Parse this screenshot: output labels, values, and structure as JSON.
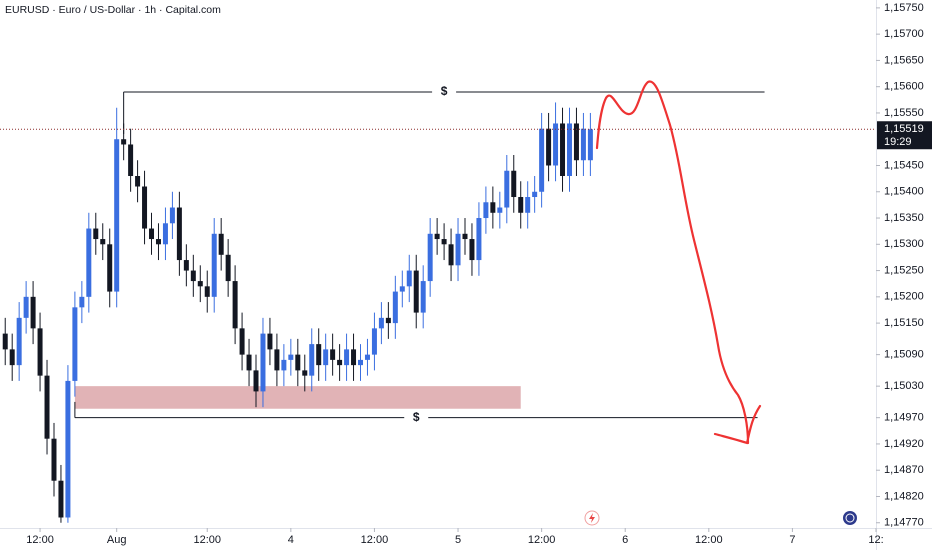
{
  "chart_data": {
    "type": "candlestick",
    "title": "EURUSD · Euro / US-Dollar · 1h · Capital.com",
    "up_color": "#3a6ee0",
    "down_color": "#131722",
    "x": [
      0,
      1,
      2,
      3,
      4,
      5,
      6,
      7,
      8,
      9,
      10,
      11,
      12,
      13,
      14,
      15,
      16,
      17,
      18,
      19,
      20,
      21,
      22,
      23,
      24,
      25,
      26,
      27,
      28,
      29,
      30,
      31,
      32,
      33,
      34,
      35,
      36,
      37,
      38,
      39,
      40,
      41,
      42,
      43,
      44,
      45,
      46,
      47,
      48,
      49,
      50,
      51,
      52,
      53,
      54,
      55,
      56,
      57,
      58,
      59,
      60,
      61,
      62,
      63,
      64,
      65,
      66,
      67,
      68,
      69,
      70,
      71,
      72,
      73,
      74,
      75,
      76,
      77,
      78,
      79,
      80,
      81,
      82,
      83,
      84
    ],
    "open": [
      1.1513,
      1.151,
      1.1507,
      1.1516,
      1.152,
      1.1514,
      1.1505,
      1.1493,
      1.1485,
      1.1478,
      1.1504,
      1.1518,
      1.152,
      1.1533,
      1.1531,
      1.153,
      1.1521,
      1.155,
      1.1549,
      1.1543,
      1.1541,
      1.1533,
      1.1531,
      1.153,
      1.1534,
      1.1537,
      1.1527,
      1.1525,
      1.1523,
      1.1522,
      1.152,
      1.1532,
      1.1528,
      1.1523,
      1.1514,
      1.1509,
      1.1506,
      1.1502,
      1.1513,
      1.151,
      1.1506,
      1.1508,
      1.1509,
      1.1506,
      1.1505,
      1.1511,
      1.1507,
      1.151,
      1.1508,
      1.1507,
      1.151,
      1.1507,
      1.1508,
      1.1509,
      1.1514,
      1.1516,
      1.1515,
      1.1521,
      1.1522,
      1.1525,
      1.1517,
      1.1523,
      1.1532,
      1.1531,
      1.153,
      1.1526,
      1.1532,
      1.1531,
      1.1527,
      1.1535,
      1.1538,
      1.1536,
      1.1537,
      1.1544,
      1.1539,
      1.1536,
      1.1539,
      1.154,
      1.1552,
      1.1545,
      1.1553,
      1.1543,
      1.1553,
      1.1546,
      1.1546
    ],
    "high": [
      1.1516,
      1.1513,
      1.1519,
      1.1523,
      1.1523,
      1.1517,
      1.1508,
      1.1496,
      1.1488,
      1.1507,
      1.1521,
      1.1523,
      1.1536,
      1.1536,
      1.1534,
      1.1533,
      1.1556,
      1.1553,
      1.1552,
      1.1546,
      1.1544,
      1.1536,
      1.1534,
      1.1537,
      1.154,
      1.154,
      1.153,
      1.1528,
      1.1526,
      1.1525,
      1.1535,
      1.1535,
      1.1531,
      1.1526,
      1.1517,
      1.1512,
      1.1509,
      1.1516,
      1.1516,
      1.1513,
      1.1511,
      1.1512,
      1.1512,
      1.1509,
      1.1514,
      1.1514,
      1.1513,
      1.1513,
      1.1511,
      1.1513,
      1.1513,
      1.1511,
      1.1512,
      1.1517,
      1.1519,
      1.1519,
      1.1524,
      1.1525,
      1.1528,
      1.1528,
      1.1526,
      1.1535,
      1.1535,
      1.1534,
      1.1533,
      1.1535,
      1.1535,
      1.1534,
      1.1538,
      1.1541,
      1.1541,
      1.154,
      1.1547,
      1.1547,
      1.1542,
      1.1542,
      1.1543,
      1.1555,
      1.1555,
      1.1557,
      1.1556,
      1.1556,
      1.1556,
      1.1555,
      1.1555
    ],
    "low": [
      1.1507,
      1.1504,
      1.1504,
      1.1513,
      1.1511,
      1.1502,
      1.149,
      1.1482,
      1.1477,
      1.1477,
      1.1501,
      1.1515,
      1.1517,
      1.1528,
      1.1527,
      1.1518,
      1.1518,
      1.1546,
      1.154,
      1.1538,
      1.153,
      1.1528,
      1.1527,
      1.1527,
      1.1531,
      1.1524,
      1.1522,
      1.152,
      1.1519,
      1.1517,
      1.1517,
      1.1525,
      1.152,
      1.1511,
      1.1506,
      1.1503,
      1.1499,
      1.1499,
      1.1507,
      1.1503,
      1.1503,
      1.1505,
      1.1503,
      1.1502,
      1.1502,
      1.1504,
      1.1504,
      1.1505,
      1.1504,
      1.1504,
      1.1504,
      1.1504,
      1.1505,
      1.1506,
      1.1511,
      1.1512,
      1.1512,
      1.1518,
      1.1519,
      1.1514,
      1.1514,
      1.152,
      1.1528,
      1.1527,
      1.1523,
      1.1523,
      1.1528,
      1.1524,
      1.1524,
      1.1532,
      1.1533,
      1.1533,
      1.1534,
      1.1536,
      1.1533,
      1.1533,
      1.1536,
      1.1537,
      1.1542,
      1.1542,
      1.154,
      1.154,
      1.1543,
      1.1543,
      1.1543
    ],
    "close": [
      1.151,
      1.1507,
      1.1516,
      1.152,
      1.1514,
      1.1505,
      1.1493,
      1.1485,
      1.1478,
      1.1504,
      1.1518,
      1.152,
      1.1533,
      1.1531,
      1.153,
      1.1521,
      1.155,
      1.1549,
      1.1543,
      1.1541,
      1.1533,
      1.1531,
      1.153,
      1.1534,
      1.1537,
      1.1527,
      1.1525,
      1.1523,
      1.1522,
      1.152,
      1.1532,
      1.1528,
      1.1523,
      1.1514,
      1.1509,
      1.1506,
      1.1502,
      1.1513,
      1.151,
      1.1506,
      1.1508,
      1.1509,
      1.1506,
      1.1505,
      1.1511,
      1.1507,
      1.151,
      1.1508,
      1.1507,
      1.151,
      1.1507,
      1.1508,
      1.1509,
      1.1514,
      1.1516,
      1.1515,
      1.1521,
      1.1522,
      1.1525,
      1.1517,
      1.1523,
      1.1532,
      1.1531,
      1.153,
      1.1526,
      1.1532,
      1.1531,
      1.1527,
      1.1535,
      1.1538,
      1.1536,
      1.1537,
      1.1544,
      1.1539,
      1.1536,
      1.1539,
      1.154,
      1.1552,
      1.1545,
      1.1553,
      1.1543,
      1.1553,
      1.1546,
      1.1552,
      1.15519
    ],
    "xlim": [
      -0.75,
      125
    ],
    "ylim": [
      1.1476,
      1.15765
    ],
    "xticks": [
      {
        "value": 5,
        "label": "12:00"
      },
      {
        "value": 16,
        "label": "Aug"
      },
      {
        "value": 29,
        "label": "12:00"
      },
      {
        "value": 41,
        "label": "4"
      },
      {
        "value": 53,
        "label": "12:00"
      },
      {
        "value": 65,
        "label": "5"
      },
      {
        "value": 77,
        "label": "12:00"
      },
      {
        "value": 89,
        "label": "6"
      },
      {
        "value": 101,
        "label": "12:00"
      },
      {
        "value": 113,
        "label": "7"
      },
      {
        "value": 125,
        "label": "12:"
      }
    ],
    "yticks": [
      {
        "value": 1.1575,
        "label": "1,15750"
      },
      {
        "value": 1.157,
        "label": "1,15700"
      },
      {
        "value": 1.1565,
        "label": "1,15650"
      },
      {
        "value": 1.156,
        "label": "1,15600"
      },
      {
        "value": 1.1555,
        "label": "1,15550"
      },
      {
        "value": 1.1545,
        "label": "1,15450"
      },
      {
        "value": 1.154,
        "label": "1,15400"
      },
      {
        "value": 1.1535,
        "label": "1,15350"
      },
      {
        "value": 1.153,
        "label": "1,15300"
      },
      {
        "value": 1.1525,
        "label": "1,15250"
      },
      {
        "value": 1.152,
        "label": "1,15200"
      },
      {
        "value": 1.1515,
        "label": "1,15150"
      },
      {
        "value": 1.1509,
        "label": "1,15090"
      },
      {
        "value": 1.1503,
        "label": "1,15030"
      },
      {
        "value": 1.1497,
        "label": "1,14970"
      },
      {
        "value": 1.1492,
        "label": "1,14920"
      },
      {
        "value": 1.1487,
        "label": "1,14870"
      },
      {
        "value": 1.1482,
        "label": "1,14820"
      },
      {
        "value": 1.1477,
        "label": "1,14770"
      }
    ],
    "last_price": {
      "value": 1.15519,
      "label": "1,15519",
      "countdown": "19:29"
    },
    "levels": [
      {
        "text": "$",
        "price": 1.1559,
        "anchor": 1.1551,
        "x": [
          17,
          109
        ]
      },
      {
        "text": "$",
        "price": 1.1497,
        "anchor": 1.15,
        "x": [
          10,
          108
        ]
      }
    ],
    "zone": {
      "price": [
        1.14987,
        1.1503
      ],
      "x": [
        10,
        74
      ],
      "color": "#d9a0a4"
    }
  }
}
